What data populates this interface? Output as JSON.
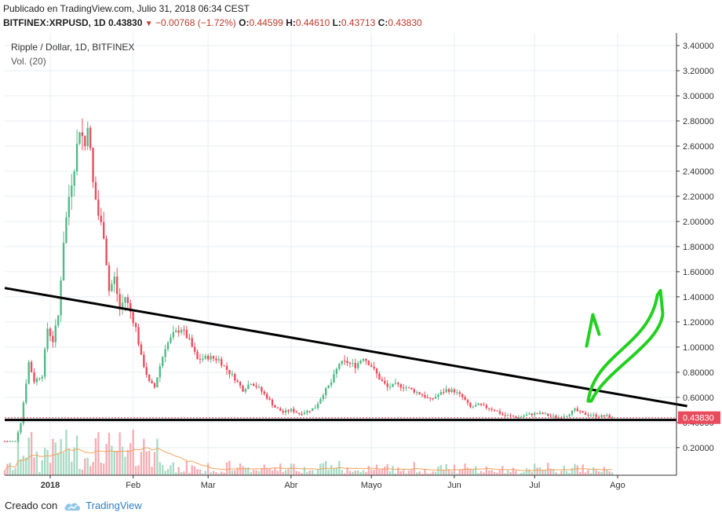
{
  "header": {
    "published": "Publicado en TradingView.com, Julio 31, 2018 06:34 CEST",
    "symbol": "BITFINEX:XRPUSD, 1D",
    "last": "0.43830",
    "change": "−0.00768 (−1.72%)",
    "o_label": "O:",
    "o": "0.44599",
    "h_label": "H:",
    "h": "0.44610",
    "l_label": "L:",
    "l": "0.43713",
    "c_label": "C:",
    "c": "0.43830"
  },
  "footer": {
    "created": "Creado con",
    "brand": "TradingView"
  },
  "colors": {
    "up": "#53b987",
    "down": "#eb4d5c",
    "vol_up": "#a8dcc5",
    "vol_down": "#f5aeb5",
    "grid": "#e8eef3",
    "axis": "#333333",
    "ma": "#f4a259",
    "arrow": "#22d11f",
    "price_tag": "#e84b5b"
  },
  "chart_data": {
    "type": "candlestick",
    "title": "Ripple / Dollar, 1D, BITFINEX",
    "indicator": "Vol. (20)",
    "y_ticks": [
      "3.40000",
      "3.20000",
      "3.00000",
      "2.80000",
      "2.60000",
      "2.40000",
      "2.20000",
      "2.00000",
      "1.80000",
      "1.60000",
      "1.40000",
      "1.20000",
      "1.00000",
      "0.80000",
      "0.60000",
      "0.40000",
      "0.20000"
    ],
    "ylim": [
      -0.02,
      3.5
    ],
    "x_ticks": [
      {
        "label": "2018",
        "day": 17
      },
      {
        "label": "Feb",
        "day": 48
      },
      {
        "label": "Mar",
        "day": 76
      },
      {
        "label": "Abr",
        "day": 107
      },
      {
        "label": "Mayo",
        "day": 137
      },
      {
        "label": "Jun",
        "day": 168
      },
      {
        "label": "Jul",
        "day": 198
      },
      {
        "label": "Ago",
        "day": 229
      }
    ],
    "last_price": 0.4383,
    "last_price_label": "0.43830",
    "trendline_start": {
      "day": 0,
      "price": 1.47
    },
    "trendline_end": {
      "day": 255,
      "price": 0.53
    },
    "support_price": 0.42,
    "close_path": [
      {
        "day": 0,
        "price": 0.25
      },
      {
        "day": 4,
        "price": 0.25
      },
      {
        "day": 6,
        "price": 0.4
      },
      {
        "day": 9,
        "price": 0.88
      },
      {
        "day": 11,
        "price": 0.73
      },
      {
        "day": 14,
        "price": 0.78
      },
      {
        "day": 16,
        "price": 1.15
      },
      {
        "day": 18,
        "price": 1.05
      },
      {
        "day": 20,
        "price": 1.25
      },
      {
        "day": 22,
        "price": 1.85
      },
      {
        "day": 24,
        "price": 2.2
      },
      {
        "day": 26,
        "price": 2.45
      },
      {
        "day": 28,
        "price": 2.75
      },
      {
        "day": 30,
        "price": 2.6
      },
      {
        "day": 31,
        "price": 2.8
      },
      {
        "day": 33,
        "price": 2.3
      },
      {
        "day": 35,
        "price": 2.05
      },
      {
        "day": 37,
        "price": 1.9
      },
      {
        "day": 39,
        "price": 1.45
      },
      {
        "day": 41,
        "price": 1.55
      },
      {
        "day": 43,
        "price": 1.3
      },
      {
        "day": 45,
        "price": 1.4
      },
      {
        "day": 47,
        "price": 1.28
      },
      {
        "day": 49,
        "price": 1.15
      },
      {
        "day": 51,
        "price": 0.92
      },
      {
        "day": 54,
        "price": 0.72
      },
      {
        "day": 56,
        "price": 0.68
      },
      {
        "day": 58,
        "price": 0.85
      },
      {
        "day": 60,
        "price": 1.0
      },
      {
        "day": 63,
        "price": 1.1
      },
      {
        "day": 66,
        "price": 1.15
      },
      {
        "day": 69,
        "price": 1.05
      },
      {
        "day": 72,
        "price": 0.9
      },
      {
        "day": 76,
        "price": 0.92
      },
      {
        "day": 80,
        "price": 0.9
      },
      {
        "day": 83,
        "price": 0.82
      },
      {
        "day": 86,
        "price": 0.75
      },
      {
        "day": 89,
        "price": 0.66
      },
      {
        "day": 92,
        "price": 0.72
      },
      {
        "day": 95,
        "price": 0.67
      },
      {
        "day": 98,
        "price": 0.6
      },
      {
        "day": 101,
        "price": 0.52
      },
      {
        "day": 104,
        "price": 0.48
      },
      {
        "day": 107,
        "price": 0.5
      },
      {
        "day": 110,
        "price": 0.47
      },
      {
        "day": 113,
        "price": 0.49
      },
      {
        "day": 116,
        "price": 0.52
      },
      {
        "day": 119,
        "price": 0.63
      },
      {
        "day": 122,
        "price": 0.72
      },
      {
        "day": 125,
        "price": 0.87
      },
      {
        "day": 128,
        "price": 0.88
      },
      {
        "day": 131,
        "price": 0.85
      },
      {
        "day": 134,
        "price": 0.92
      },
      {
        "day": 137,
        "price": 0.85
      },
      {
        "day": 140,
        "price": 0.75
      },
      {
        "day": 143,
        "price": 0.68
      },
      {
        "day": 146,
        "price": 0.7
      },
      {
        "day": 150,
        "price": 0.68
      },
      {
        "day": 153,
        "price": 0.65
      },
      {
        "day": 156,
        "price": 0.62
      },
      {
        "day": 159,
        "price": 0.58
      },
      {
        "day": 162,
        "price": 0.62
      },
      {
        "day": 165,
        "price": 0.66
      },
      {
        "day": 168,
        "price": 0.65
      },
      {
        "day": 171,
        "price": 0.6
      },
      {
        "day": 174,
        "price": 0.52
      },
      {
        "day": 177,
        "price": 0.54
      },
      {
        "day": 180,
        "price": 0.52
      },
      {
        "day": 183,
        "price": 0.5
      },
      {
        "day": 186,
        "price": 0.46
      },
      {
        "day": 189,
        "price": 0.45
      },
      {
        "day": 192,
        "price": 0.44
      },
      {
        "day": 195,
        "price": 0.46
      },
      {
        "day": 198,
        "price": 0.47
      },
      {
        "day": 201,
        "price": 0.47
      },
      {
        "day": 204,
        "price": 0.45
      },
      {
        "day": 207,
        "price": 0.44
      },
      {
        "day": 210,
        "price": 0.46
      },
      {
        "day": 213,
        "price": 0.5
      },
      {
        "day": 216,
        "price": 0.47
      },
      {
        "day": 219,
        "price": 0.46
      },
      {
        "day": 222,
        "price": 0.45
      },
      {
        "day": 225,
        "price": 0.45
      },
      {
        "day": 227,
        "price": 0.4383
      }
    ]
  }
}
